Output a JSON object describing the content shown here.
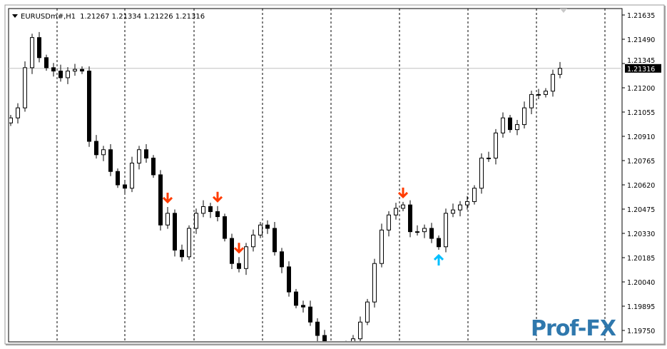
{
  "header": {
    "symbol": "EURUSDm#,H1",
    "ohlc": "1.21267 1.21334 1.21226 1.21316"
  },
  "logo_text": "Prof-FX",
  "chart_data": {
    "type": "candlestick",
    "title": "EURUSDm#,H1",
    "ylim": [
      1.19685,
      1.2168
    ],
    "y_ticks": [
      "1.21635",
      "1.21490",
      "1.21345",
      "1.21200",
      "1.21055",
      "1.20910",
      "1.20765",
      "1.20620",
      "1.20475",
      "1.20330",
      "1.20185",
      "1.20040",
      "1.19895",
      "1.19750"
    ],
    "current_price": "1.21316",
    "grid": "vertical dashed",
    "closes": [
      1.2102,
      1.2108,
      1.2132,
      1.215,
      1.2138,
      1.2132,
      1.213,
      1.2126,
      1.213,
      1.2131,
      1.213,
      1.2088,
      1.208,
      1.2083,
      1.207,
      1.2062,
      1.206,
      1.2075,
      1.2083,
      1.2078,
      1.2068,
      1.2038,
      1.2045,
      1.2023,
      1.2019,
      1.2036,
      1.2045,
      1.2049,
      1.2046,
      1.2043,
      1.203,
      1.2015,
      1.2012,
      1.2025,
      1.2032,
      1.2038,
      1.2036,
      1.2022,
      1.2013,
      1.1998,
      1.199,
      1.1989,
      1.198,
      1.1972,
      1.1962,
      1.1958,
      1.196,
      1.1965,
      1.197,
      1.198,
      1.1992,
      1.2015,
      1.2035,
      1.2044,
      1.2048,
      1.205,
      1.2034,
      1.2034,
      1.2036,
      1.203,
      1.2025,
      1.2045,
      1.2047,
      1.205,
      1.2052,
      1.206,
      1.2078,
      1.2078,
      1.2093,
      1.2102,
      1.2095,
      1.2098,
      1.2108,
      1.2116,
      1.2116,
      1.2118,
      1.2128,
      1.21316
    ],
    "signals": [
      {
        "bar": 22,
        "type": "sell"
      },
      {
        "bar": 29,
        "type": "sell"
      },
      {
        "bar": 32,
        "type": "sell"
      },
      {
        "bar": 55,
        "type": "sell"
      },
      {
        "bar": 60,
        "type": "buy"
      }
    ],
    "colors": {
      "sell": "#ff3c00",
      "buy": "#00bfff",
      "candle": "#000000",
      "price_line": "#c0c0c0"
    }
  }
}
